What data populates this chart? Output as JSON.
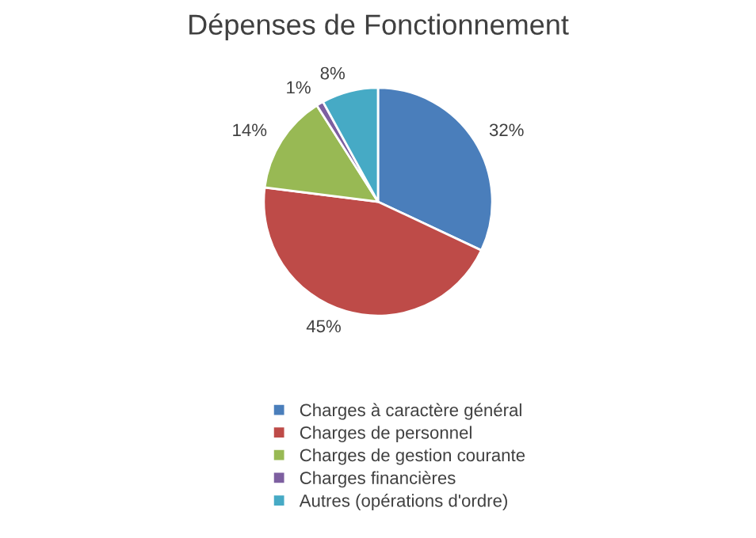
{
  "chart_data": {
    "type": "pie",
    "title": "Dépenses de Fonctionnement",
    "categories": [
      "Charges à caractère général",
      "Charges de personnel",
      "Charges de gestion courante",
      "Charges financières",
      "Autres (opérations d'ordre)"
    ],
    "values": [
      32,
      45,
      14,
      1,
      8
    ],
    "colors": [
      "#4a7ebb",
      "#be4b48",
      "#98b954",
      "#7d5fa0",
      "#46aac5"
    ],
    "value_labels": [
      "32%",
      "45%",
      "14%",
      "1%",
      "8%"
    ],
    "legend": "bottom"
  }
}
